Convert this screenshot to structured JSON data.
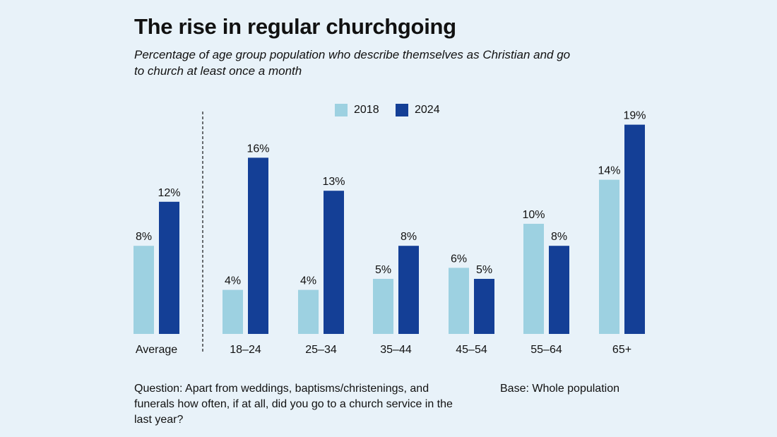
{
  "title": "The rise in regular churchgoing",
  "subtitle": "Percentage of age group population who describe themselves as Christian and go to church at least once a month",
  "footnote": "Question: Apart from weddings, baptisms/christenings, and funerals how often, if at all, did you go to a church service in the last year?",
  "base": "Base: Whole population",
  "colors": {
    "2018": "#9dd1e1",
    "2024": "#143f96",
    "background": "#e8f2f9"
  },
  "chart_data": {
    "type": "bar",
    "categories": [
      "Average",
      "18–24",
      "25–34",
      "35–44",
      "45–54",
      "55–64",
      "65+"
    ],
    "series": [
      {
        "name": "2018",
        "values": [
          8,
          4,
          4,
          5,
          6,
          10,
          14
        ],
        "labels": [
          "8%",
          "4%",
          "4%",
          "5%",
          "6%",
          "10%",
          "14%"
        ]
      },
      {
        "name": "2024",
        "values": [
          12,
          16,
          13,
          8,
          5,
          8,
          19
        ],
        "labels": [
          "12%",
          "16%",
          "13%",
          "8%",
          "5%",
          "8%",
          "19%"
        ]
      }
    ],
    "ylim": [
      0,
      20
    ],
    "grid": false,
    "legend": "top-center",
    "separator_after_first_category": true,
    "xlabel": "",
    "ylabel": ""
  }
}
